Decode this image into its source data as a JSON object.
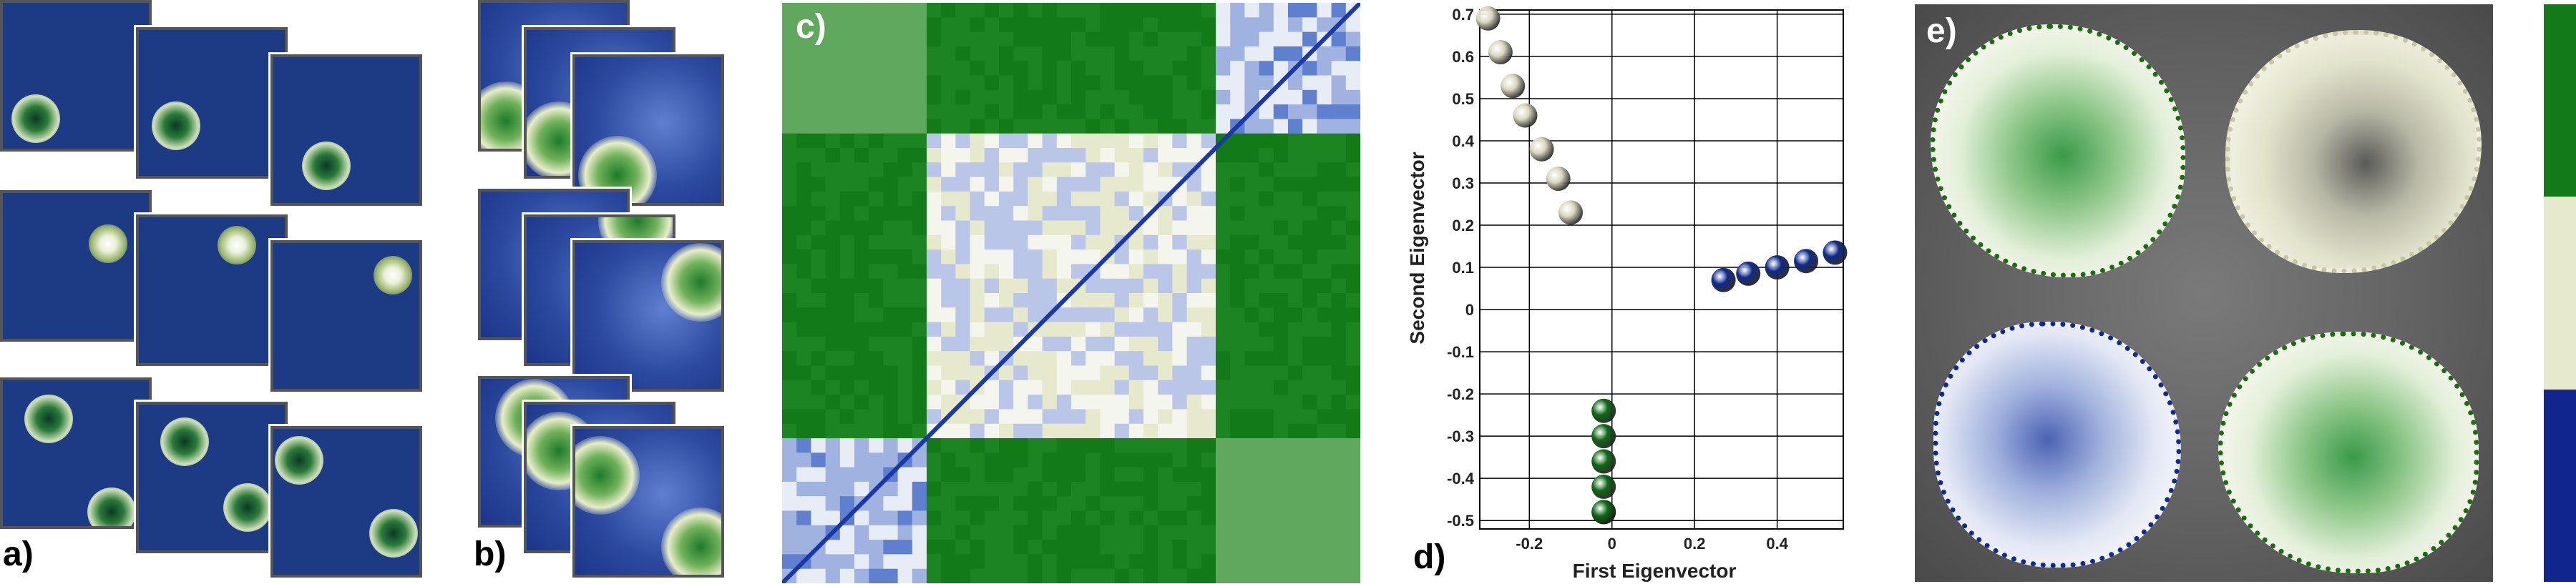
{
  "panels": {
    "a": {
      "label": "a)"
    },
    "b": {
      "label": "b)"
    },
    "c": {
      "label": "c)"
    },
    "d": {
      "label": "d)"
    },
    "e": {
      "label": "e)"
    }
  },
  "colors": {
    "green": "#127a17",
    "cream": "#e6e9cc",
    "blue": "#10268e",
    "white": "#ffffff"
  },
  "chart_data": [
    {
      "type": "heatmap",
      "title": "",
      "blocks": [
        "green-cluster",
        "cream-cluster",
        "blue-cluster"
      ],
      "block_sizes": [
        6,
        12,
        6
      ],
      "order": [
        "blue-cluster",
        "cream-cluster",
        "green-cluster"
      ],
      "note_colors": [
        "#127a17",
        "#e6e9cc",
        "#10268e"
      ]
    },
    {
      "type": "scatter",
      "xlabel": "First Eigenvector",
      "ylabel": "Second Eigenvector",
      "xlim": [
        -0.32,
        0.56
      ],
      "ylim": [
        -0.52,
        0.71
      ],
      "xticks": [
        "-0.2",
        "0",
        "0.2",
        "0.4"
      ],
      "xtick_values": [
        -0.2,
        0,
        0.2,
        0.4
      ],
      "yticks": [
        "0.7",
        "0.6",
        "0.5",
        "0.4",
        "0.3",
        "0.2",
        "0.1",
        "0",
        "-0.1",
        "-0.2",
        "-0.3",
        "-0.4",
        "-0.5"
      ],
      "ytick_values": [
        0.7,
        0.6,
        0.5,
        0.4,
        0.3,
        0.2,
        0.1,
        0,
        -0.1,
        -0.2,
        -0.3,
        -0.4,
        -0.5
      ],
      "grid": true,
      "series": [
        {
          "color": "#d8d6bd",
          "x": [
            -0.3,
            -0.27,
            -0.24,
            -0.21,
            -0.17,
            -0.13,
            -0.1
          ],
          "y": [
            0.69,
            0.61,
            0.53,
            0.46,
            0.38,
            0.31,
            0.23
          ]
        },
        {
          "color": "#0e2a8a",
          "x": [
            0.27,
            0.33,
            0.4,
            0.47,
            0.54
          ],
          "y": [
            0.07,
            0.085,
            0.1,
            0.115,
            0.135
          ]
        },
        {
          "color": "#0f6a16",
          "x": [
            -0.02,
            -0.02,
            -0.02,
            -0.02,
            -0.02,
            -0.02
          ],
          "y": [
            -0.24,
            -0.3,
            -0.36,
            -0.42,
            -0.48,
            -0.48
          ]
        }
      ]
    }
  ]
}
